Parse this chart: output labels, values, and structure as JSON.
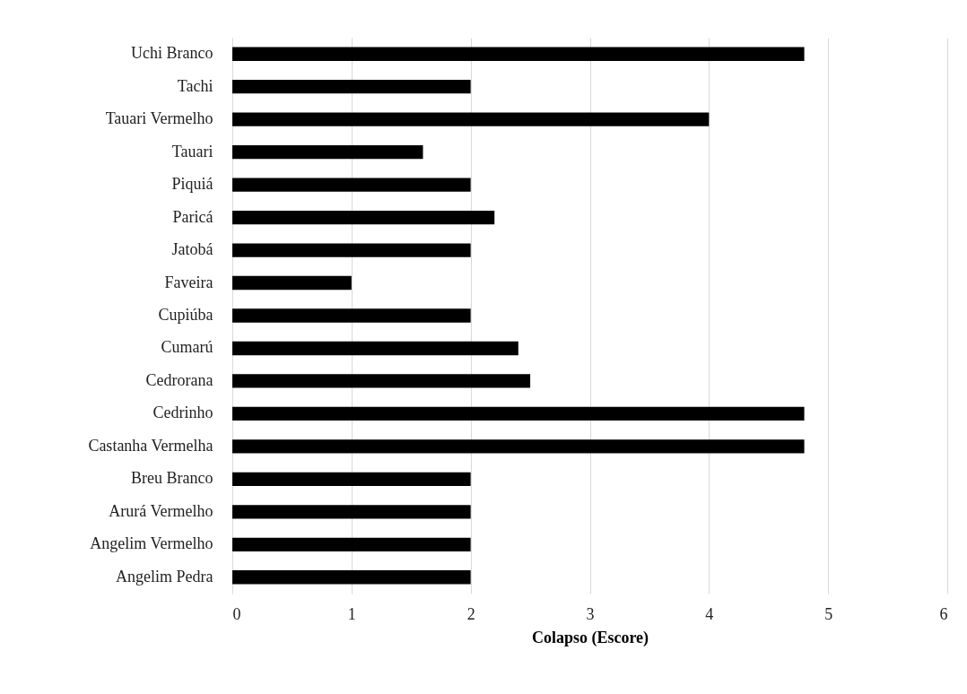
{
  "chart_data": {
    "type": "bar",
    "orientation": "horizontal",
    "xlabel": "Colapso (Escore)",
    "categories": [
      "Uchi Branco",
      "Tachi",
      "Tauari Vermelho",
      "Tauari",
      "Piquiá",
      "Paricá",
      "Jatobá",
      "Faveira",
      "Cupiúba",
      "Cumarú",
      "Cedrorana",
      "Cedrinho",
      "Castanha Vermelha",
      "Breu Branco",
      "Arurá Vermelho",
      "Angelim Vermelho",
      "Angelim Pedra"
    ],
    "values": [
      4.8,
      2,
      4,
      1.6,
      2,
      2.2,
      2,
      1,
      2,
      2.4,
      2.5,
      4.8,
      4.8,
      2,
      2,
      2,
      2
    ],
    "color": "#000000",
    "xlim": [
      0,
      6
    ],
    "xticks": [
      0,
      1,
      2,
      3,
      4,
      5,
      6
    ],
    "grid": "x"
  }
}
